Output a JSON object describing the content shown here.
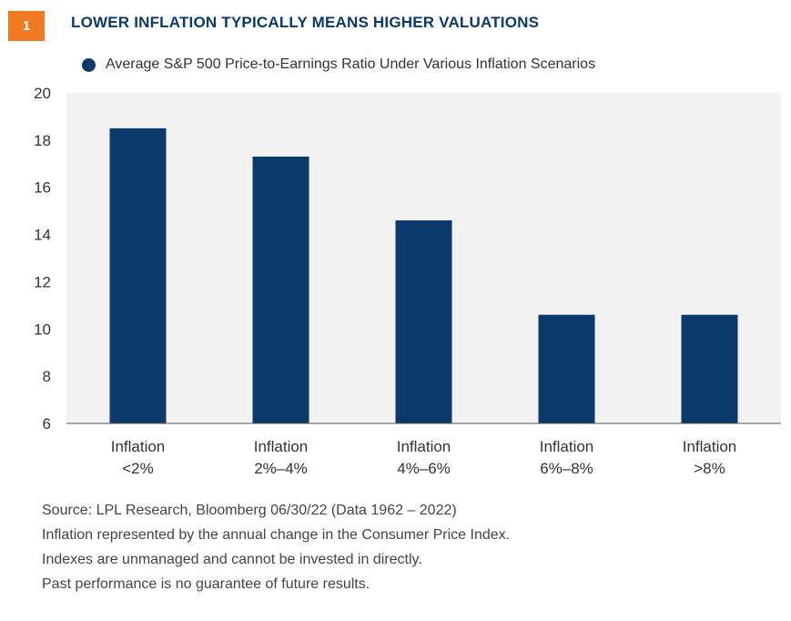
{
  "header": {
    "badge": "1",
    "title": "LOWER INFLATION TYPICALLY MEANS HIGHER VALUATIONS"
  },
  "colors": {
    "accent": "#f07922",
    "bar": "#0b3a6a",
    "plot_bg": "#f2f2f2"
  },
  "chart_data": {
    "type": "bar",
    "title": "",
    "legend": {
      "position": "top-left"
    },
    "categories": [
      [
        "Inflation",
        "<2%"
      ],
      [
        "Inflation",
        "2%–4%"
      ],
      [
        "Inflation",
        "4%–6%"
      ],
      [
        "Inflation",
        "6%–8%"
      ],
      [
        "Inflation",
        ">8%"
      ]
    ],
    "series": [
      {
        "name": "Average S&P 500 Price-to-Earnings Ratio Under Various Inflation Scenarios",
        "values": [
          18.5,
          17.3,
          14.6,
          10.6,
          10.6
        ]
      }
    ],
    "ylim": [
      6,
      20
    ],
    "yticks": [
      "20",
      "18",
      "16",
      "14",
      "12",
      "10",
      "8",
      "6"
    ],
    "grid": false
  },
  "footer": {
    "source": "Source: LPL Research, Bloomberg  06/30/22 (Data 1962 – 2022)",
    "note1": "Inflation represented by the annual change in the Consumer Price Index.",
    "note2": "Indexes are unmanaged and cannot be invested in directly.",
    "note3": "Past performance is no guarantee of future results."
  }
}
